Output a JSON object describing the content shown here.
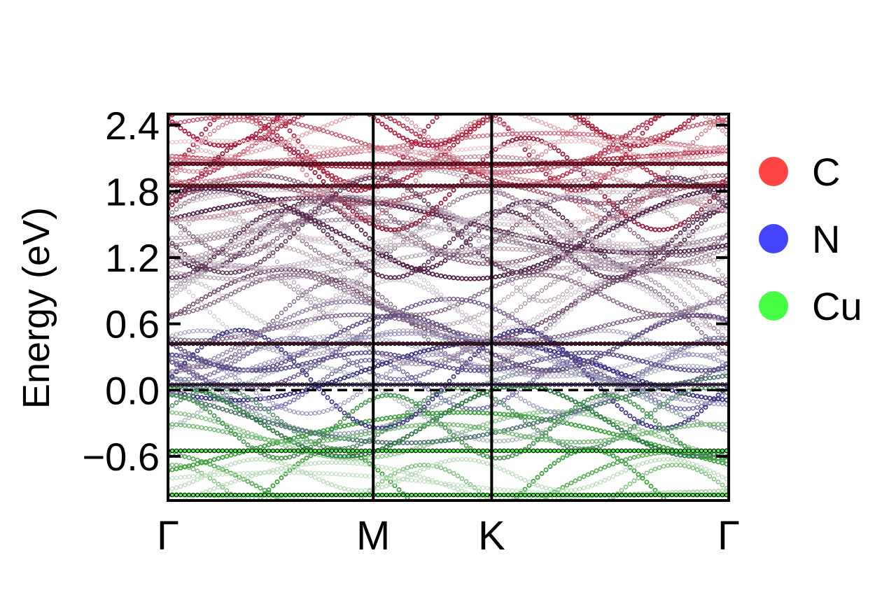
{
  "chart_data": {
    "type": "scatter",
    "title": "",
    "xlabel": "",
    "ylabel": "Energy (eV)",
    "ylim": [
      -1.0,
      2.5
    ],
    "yticks": [
      -0.6,
      0.0,
      0.6,
      1.2,
      1.8,
      2.4
    ],
    "ytick_labels": [
      "−0.6",
      "0.0",
      "0.6",
      "1.2",
      "1.8",
      "2.4"
    ],
    "kpath": [
      {
        "label": "Γ",
        "k": 0.0
      },
      {
        "label": "M",
        "k": 1.0
      },
      {
        "label": "K",
        "k": 1.577
      },
      {
        "label": "Γ",
        "k": 2.732
      }
    ],
    "fermi_level": 0.0,
    "legend_position": "right",
    "series": [
      {
        "name": "C",
        "color": "#ff4444"
      },
      {
        "name": "N",
        "color": "#4444ff"
      },
      {
        "name": "Cu",
        "color": "#44ff44"
      }
    ],
    "flat_bands": [
      {
        "energy": 2.05,
        "color": "#b01030",
        "width": 5
      },
      {
        "energy": 1.85,
        "color": "#a01030",
        "width": 4
      },
      {
        "energy": 0.42,
        "color": "#501030",
        "width": 4
      },
      {
        "energy": 0.05,
        "color": "#301050",
        "width": 3
      },
      {
        "energy": -0.55,
        "color": "#44ff44",
        "width": 5
      },
      {
        "energy": -0.95,
        "color": "#44ff44",
        "width": 5
      }
    ]
  }
}
